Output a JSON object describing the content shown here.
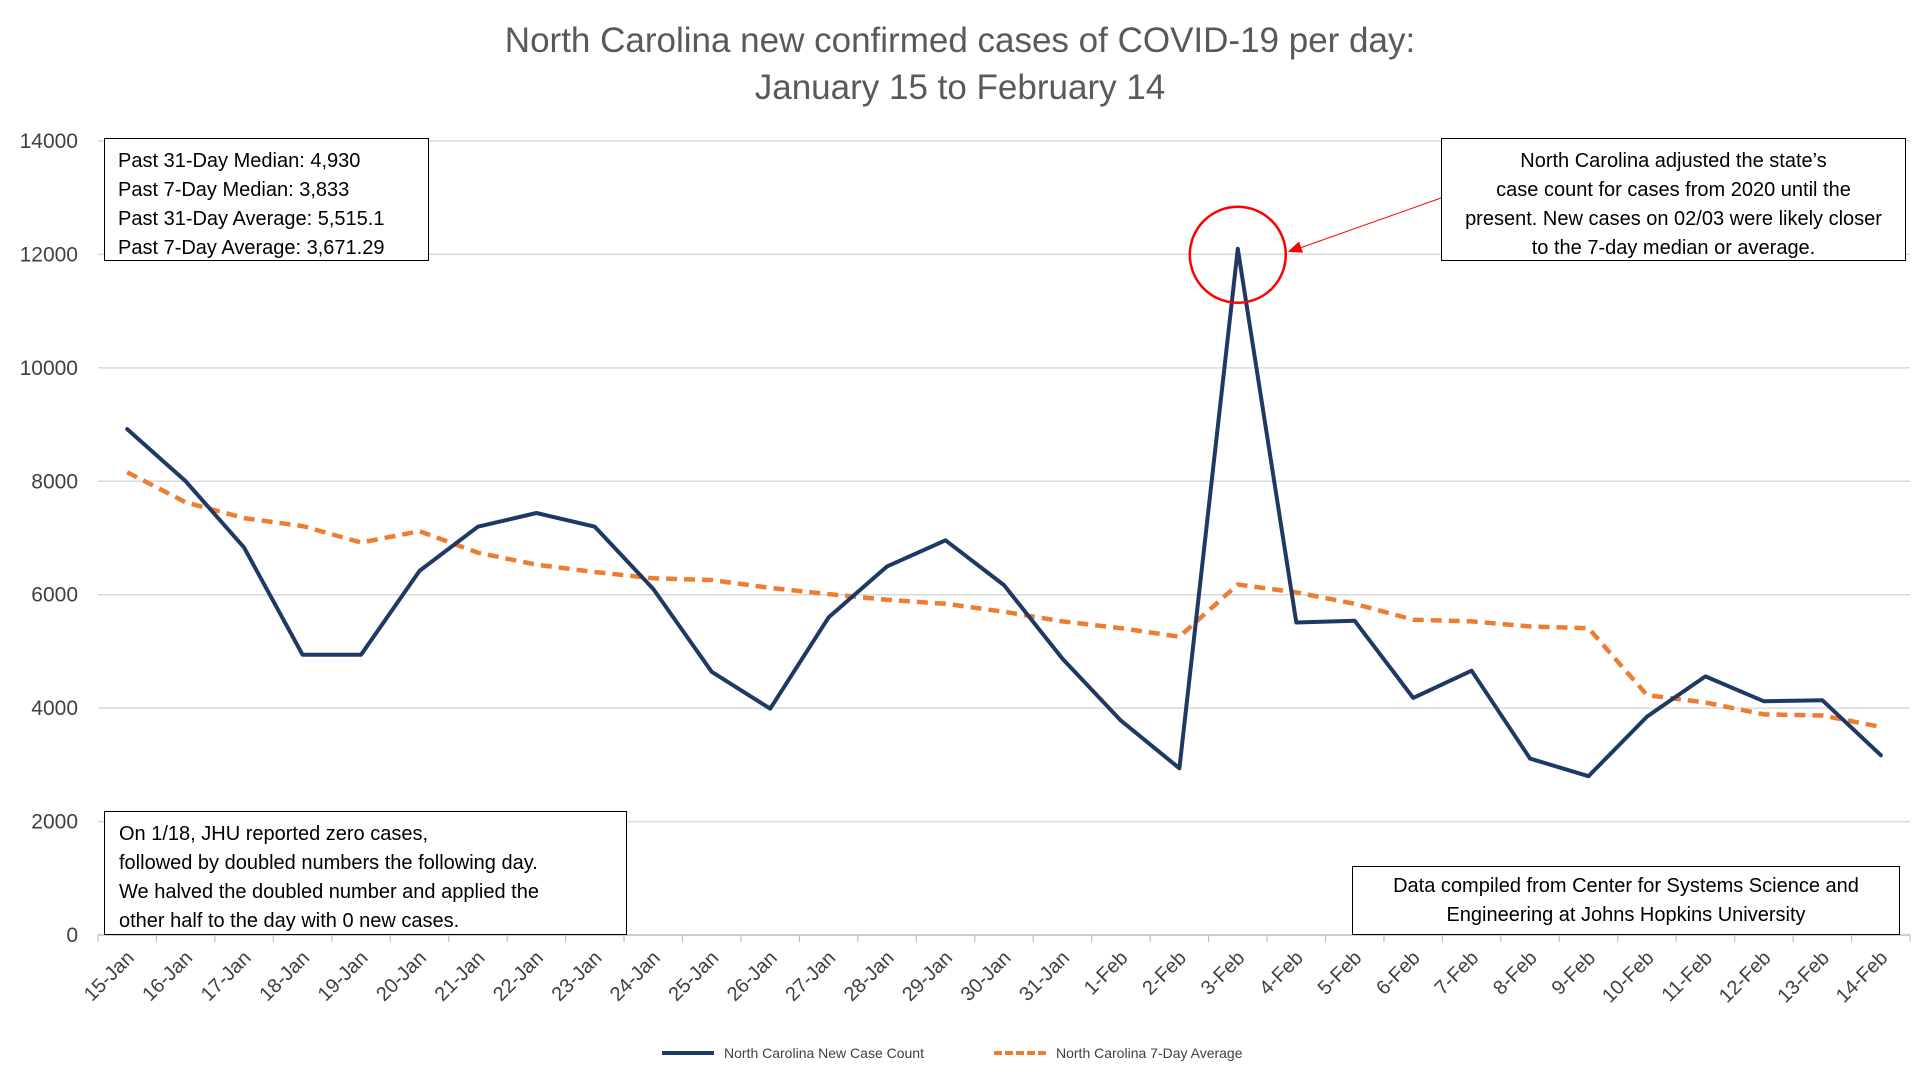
{
  "chart_data": {
    "type": "line",
    "title": [
      "North Carolina new confirmed cases of COVID-19 per day:",
      "January 15 to February 14"
    ],
    "categories": [
      "15-Jan",
      "16-Jan",
      "17-Jan",
      "18-Jan",
      "19-Jan",
      "20-Jan",
      "21-Jan",
      "22-Jan",
      "23-Jan",
      "24-Jan",
      "25-Jan",
      "26-Jan",
      "27-Jan",
      "28-Jan",
      "29-Jan",
      "30-Jan",
      "31-Jan",
      "1-Feb",
      "2-Feb",
      "3-Feb",
      "4-Feb",
      "5-Feb",
      "6-Feb",
      "7-Feb",
      "8-Feb",
      "9-Feb",
      "10-Feb",
      "11-Feb",
      "12-Feb",
      "13-Feb",
      "14-Feb"
    ],
    "ylim": [
      0,
      14000
    ],
    "yticks": [
      "0",
      "2000",
      "4000",
      "6000",
      "8000",
      "10000",
      "12000",
      "14000"
    ],
    "grid": true,
    "legend_position": "bottom",
    "series": [
      {
        "name": "North Carolina New Case Count",
        "color": "#1F3864",
        "style": "solid",
        "values": [
          8920,
          8000,
          6830,
          4940,
          4940,
          6420,
          7200,
          7440,
          7200,
          6100,
          4640,
          3990,
          5600,
          6500,
          6960,
          6170,
          4870,
          3780,
          2940,
          12100,
          5510,
          5540,
          4180,
          4660,
          3110,
          2800,
          3850,
          4560,
          4120,
          4140,
          3170
        ]
      },
      {
        "name": "North Carolina 7-Day Average",
        "color": "#ED7D31",
        "style": "dashed",
        "values": [
          8160,
          7630,
          7350,
          7210,
          6920,
          7120,
          6740,
          6530,
          6400,
          6290,
          6260,
          6120,
          6010,
          5910,
          5840,
          5700,
          5530,
          5410,
          5260,
          6180,
          6040,
          5840,
          5560,
          5530,
          5440,
          5410,
          4230,
          4100,
          3890,
          3870,
          3670
        ]
      }
    ],
    "annotations": {
      "stats_box": [
        "Past 31-Day Median: 4,930",
        "Past 7-Day Median: 3,833",
        "Past 31-Day Average: 5,515.1",
        "Past 7-Day Average: 3,671.29"
      ],
      "adjust_note": [
        "North Carolina adjusted the state’s",
        "case count for cases from 2020 until the",
        "present. New cases on 02/03 were likely closer",
        "to the 7-day median or average."
      ],
      "jhu_note": [
        "On 1/18, JHU reported zero cases,",
        "followed by doubled numbers the following day.",
        "We halved the doubled number and applied the",
        "other half to the day with 0 new cases."
      ],
      "source_note": [
        "Data compiled from Center for Systems Science and",
        "Engineering at Johns Hopkins University"
      ],
      "highlight_category": "3-Feb",
      "highlight_color": "#FF0000"
    }
  }
}
